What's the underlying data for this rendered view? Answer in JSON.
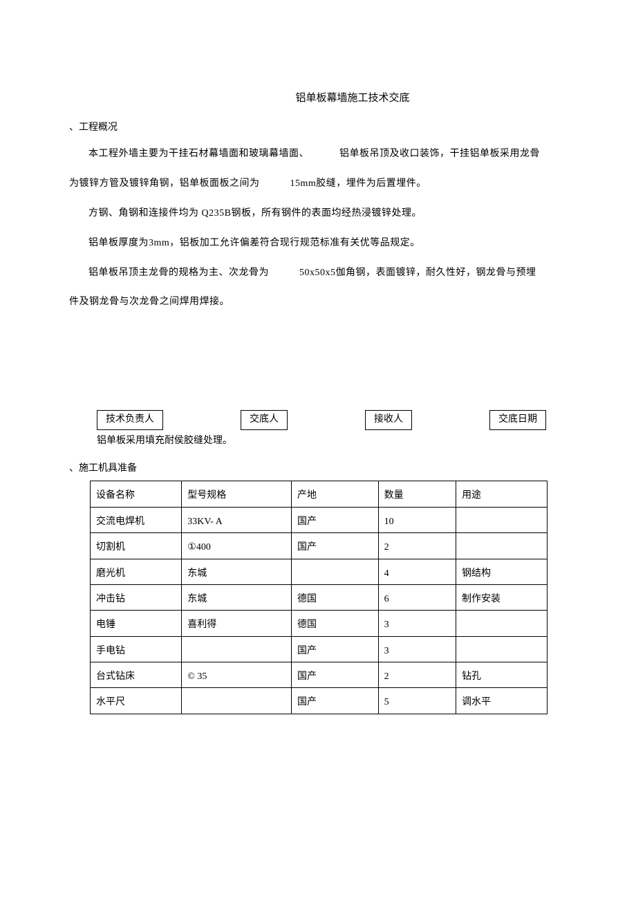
{
  "title": "铝单板幕墙施工技术交底",
  "section1": {
    "heading": "、工程概况",
    "p1a": "本工程外墙主要为干挂石材幕墙面和玻璃幕墙面、",
    "p1b": "铝单板吊顶及收口装饰，干挂铝单板采用龙骨",
    "p2a": "为镀锌方管及镀锌角钢，铝单板面板之间为",
    "p2b": "15mm胶缝，埋件为后置埋件。",
    "p3": "方钢、角钢和连接件均为 Q235B钢板，所有钢件的表面均经热浸镀锌处理。",
    "p4": "铝单板厚度为3mm，铝板加工允许偏差符合现行规范标准有关优等品规定。",
    "p5a": "铝单板吊顶主龙骨的规格为主、次龙骨为",
    "p5b": "50x50x5伽角钢，表面镀锌，耐久性好，钢龙骨与预埋",
    "p6": "件及钢龙骨与次龙骨之间焊用焊接。"
  },
  "signatures": {
    "s1": "技术负责人",
    "s2": "交底人",
    "s3": "接收人",
    "s4": "交底日期"
  },
  "after_sig": "铝单板采用填充耐侯胶缝处理。",
  "section2": {
    "heading": "、施工机具准备"
  },
  "table": {
    "headers": [
      "设备名称",
      "型号规格",
      "产地",
      "数量",
      "用途"
    ],
    "rows": [
      [
        "交流电焊机",
        "33KV- A",
        "国产",
        "10",
        ""
      ],
      [
        "切割机",
        "①400",
        "国产",
        "2",
        ""
      ],
      [
        "磨光机",
        "东城",
        "",
        "4",
        "钢结构"
      ],
      [
        "冲击钻",
        "东城",
        "德国",
        "6",
        "制作安装"
      ],
      [
        "电锤",
        "喜利得",
        "德国",
        "3",
        ""
      ],
      [
        "手电钻",
        "",
        "国产",
        "3",
        ""
      ],
      [
        "台式钻床",
        "© 35",
        "国产",
        "2",
        "钻孔"
      ],
      [
        "水平尺",
        "",
        "国产",
        "5",
        "调水平"
      ]
    ]
  },
  "colors": {
    "text": "#000000",
    "background": "#ffffff",
    "border": "#000000"
  }
}
